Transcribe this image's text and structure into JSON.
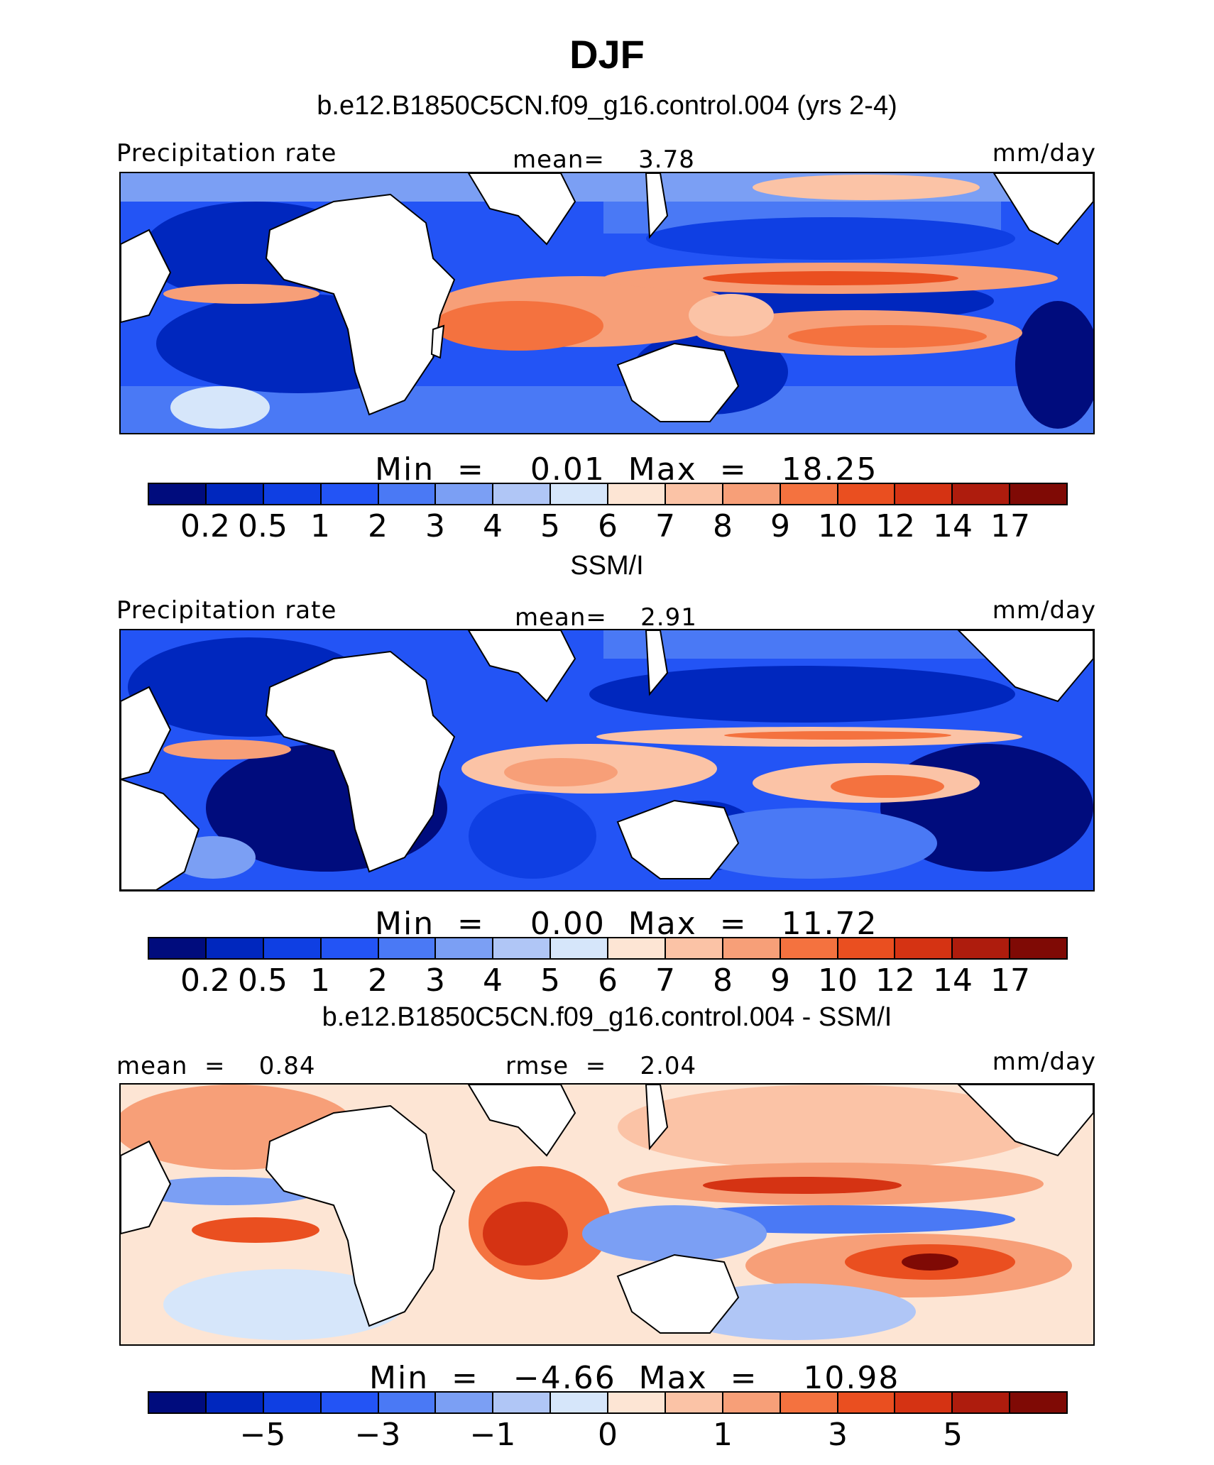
{
  "title": "DJF",
  "panels": [
    {
      "id": "model",
      "title": "b.e12.B1850C5CN.f09_g16.control.004 (yrs 2-4)",
      "left_label": "Precipitation rate",
      "center_label": "mean=    3.78",
      "right_label": "mm/day",
      "min_max": "Min  =    0.01  Max  =   18.25",
      "stats": {
        "mean": 3.78,
        "min": 0.01,
        "max": 18.25,
        "units": "mm/day"
      },
      "colorbar_ticks": [
        "0.2",
        "0.5",
        "1",
        "2",
        "3",
        "4",
        "5",
        "6",
        "7",
        "8",
        "9",
        "10",
        "12",
        "14",
        "17"
      ],
      "colorbar_colors": [
        "#000c7d",
        "#0027be",
        "#0f3fe3",
        "#2354f5",
        "#4a79f5",
        "#7b9ff4",
        "#b0c6f6",
        "#d6e6fa",
        "#fde5d4",
        "#fbc3a6",
        "#f79f78",
        "#f4723f",
        "#ea4f20",
        "#d53313",
        "#ae1c0d",
        "#7f0a05"
      ]
    },
    {
      "id": "obs",
      "title": "SSM/I",
      "left_label": "Precipitation rate",
      "center_label": "mean=    2.91",
      "right_label": "mm/day",
      "min_max": "Min  =    0.00  Max  =   11.72",
      "stats": {
        "mean": 2.91,
        "min": 0.0,
        "max": 11.72,
        "units": "mm/day"
      },
      "colorbar_ticks": [
        "0.2",
        "0.5",
        "1",
        "2",
        "3",
        "4",
        "5",
        "6",
        "7",
        "8",
        "9",
        "10",
        "12",
        "14",
        "17"
      ],
      "colorbar_colors": [
        "#000c7d",
        "#0027be",
        "#0f3fe3",
        "#2354f5",
        "#4a79f5",
        "#7b9ff4",
        "#b0c6f6",
        "#d6e6fa",
        "#fde5d4",
        "#fbc3a6",
        "#f79f78",
        "#f4723f",
        "#ea4f20",
        "#d53313",
        "#ae1c0d",
        "#7f0a05"
      ]
    },
    {
      "id": "diff",
      "title": "b.e12.B1850C5CN.f09_g16.control.004 - SSM/I",
      "left_label": "mean  =    0.84",
      "center_label": "rmse  =    2.04",
      "right_label": "mm/day",
      "min_max": "Min  =   −4.66  Max  =    10.98",
      "stats": {
        "mean": 0.84,
        "rmse": 2.04,
        "min": -4.66,
        "max": 10.98,
        "units": "mm/day"
      },
      "colorbar_ticks": [
        "−5",
        "−3",
        "−1",
        "0",
        "1",
        "3",
        "5"
      ],
      "colorbar_colors": [
        "#000c7d",
        "#0027be",
        "#0f3fe3",
        "#2354f5",
        "#4a79f5",
        "#7b9ff4",
        "#b0c6f6",
        "#d6e6fa",
        "#fde5d4",
        "#fbc3a6",
        "#f79f78",
        "#f4723f",
        "#ea4f20",
        "#d53313",
        "#ae1c0d",
        "#7f0a05"
      ]
    }
  ]
}
